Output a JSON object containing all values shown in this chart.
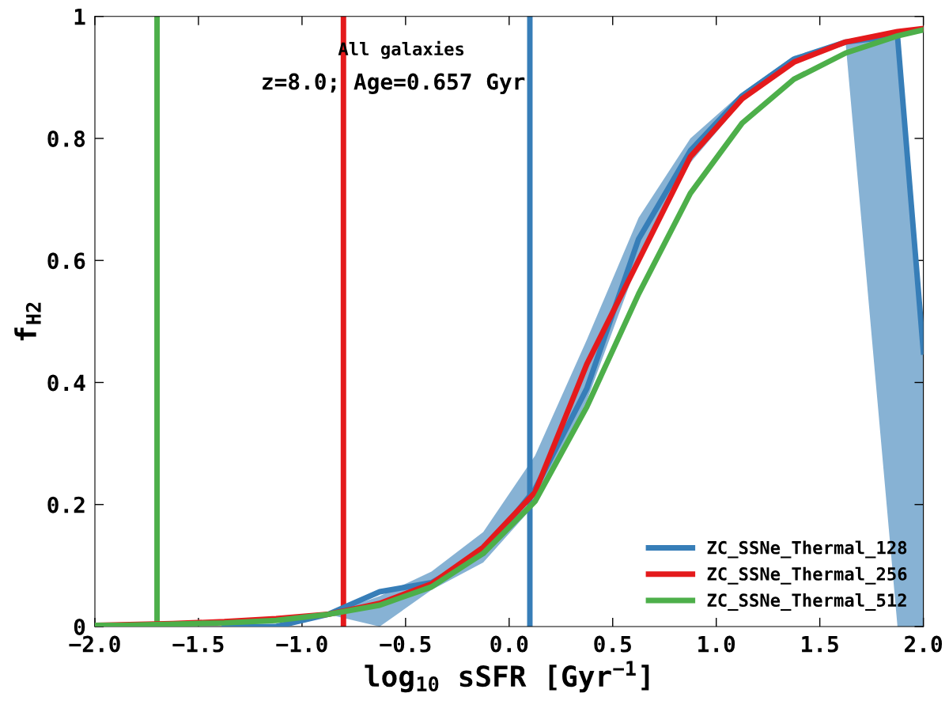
{
  "chart_data": {
    "type": "line",
    "xlabel": "log$_{10}$ sSFR [Gyr$^{−1}$]",
    "ylabel": "f$_{H2}$",
    "annotations": [
      "All galaxies",
      "z=8.0; Age=0.657 Gyr"
    ],
    "series": [
      {
        "name": "ZC_SSNe_Thermal_128",
        "color": "#377eb8",
        "x": [
          -1.375,
          -1.125,
          -0.875,
          -0.625,
          -0.375,
          -0.125,
          0.125,
          0.375,
          0.625,
          0.875,
          1.125,
          1.375,
          1.625,
          1.875,
          2.0
        ],
        "values": [
          0.0,
          0.0,
          0.02,
          0.057,
          0.072,
          0.12,
          0.225,
          0.39,
          0.635,
          0.78,
          0.87,
          0.93,
          0.958,
          0.968,
          0.45
        ],
        "lower": [
          0.0,
          0.0,
          0.02,
          0.0,
          0.06,
          0.105,
          0.2,
          0.37,
          0.6,
          0.76,
          0.86,
          0.925,
          0.955,
          0.0,
          0.0
        ],
        "upper": [
          0.0,
          0.0,
          0.02,
          0.05,
          0.09,
          0.155,
          0.28,
          0.47,
          0.67,
          0.8,
          0.875,
          0.935,
          0.958,
          0.97,
          0.45
        ]
      },
      {
        "name": "ZC_SSNe_Thermal_256",
        "color": "#e41a1c",
        "x": [
          -2.0,
          -1.875,
          -1.625,
          -1.375,
          -1.125,
          -0.875,
          -0.625,
          -0.375,
          -0.125,
          0.125,
          0.375,
          0.625,
          0.875,
          1.125,
          1.375,
          1.625,
          1.875,
          2.0
        ],
        "values": [
          0.002,
          0.003,
          0.005,
          0.008,
          0.013,
          0.02,
          0.038,
          0.07,
          0.13,
          0.22,
          0.43,
          0.6,
          0.77,
          0.865,
          0.925,
          0.958,
          0.975,
          0.98
        ]
      },
      {
        "name": "ZC_SSNe_Thermal_512",
        "color": "#4daf4a",
        "x": [
          -2.0,
          -1.875,
          -1.625,
          -1.375,
          -1.125,
          -0.875,
          -0.625,
          -0.375,
          -0.125,
          0.125,
          0.375,
          0.625,
          0.875,
          1.125,
          1.375,
          1.625,
          1.875,
          2.0
        ],
        "values": [
          0.002,
          0.002,
          0.004,
          0.006,
          0.01,
          0.02,
          0.035,
          0.065,
          0.12,
          0.205,
          0.36,
          0.545,
          0.71,
          0.825,
          0.897,
          0.94,
          0.968,
          0.978
        ]
      }
    ],
    "ref_lines": [
      {
        "axis": "x",
        "value": -1.7,
        "color": "#4daf4a"
      },
      {
        "axis": "x",
        "value": -0.8,
        "color": "#e41a1c"
      },
      {
        "axis": "x",
        "value": 0.1,
        "color": "#377eb8"
      }
    ],
    "xlim": [
      -2.0,
      2.0
    ],
    "ylim": [
      0,
      1
    ],
    "xticks": [
      {
        "value": -2.0,
        "label": "−2.0"
      },
      {
        "value": -1.5,
        "label": "−1.5"
      },
      {
        "value": -1.0,
        "label": "−1.0"
      },
      {
        "value": -0.5,
        "label": "−0.5"
      },
      {
        "value": 0.0,
        "label": "0.0"
      },
      {
        "value": 0.5,
        "label": "0.5"
      },
      {
        "value": 1.0,
        "label": "1.0"
      },
      {
        "value": 1.5,
        "label": "1.5"
      },
      {
        "value": 2.0,
        "label": "2.0"
      }
    ],
    "yticks": [
      0,
      0.2,
      0.4,
      0.6,
      0.8,
      1
    ],
    "grid": false,
    "legend": "bottom right",
    "line_style": "solid",
    "marker": "none"
  }
}
